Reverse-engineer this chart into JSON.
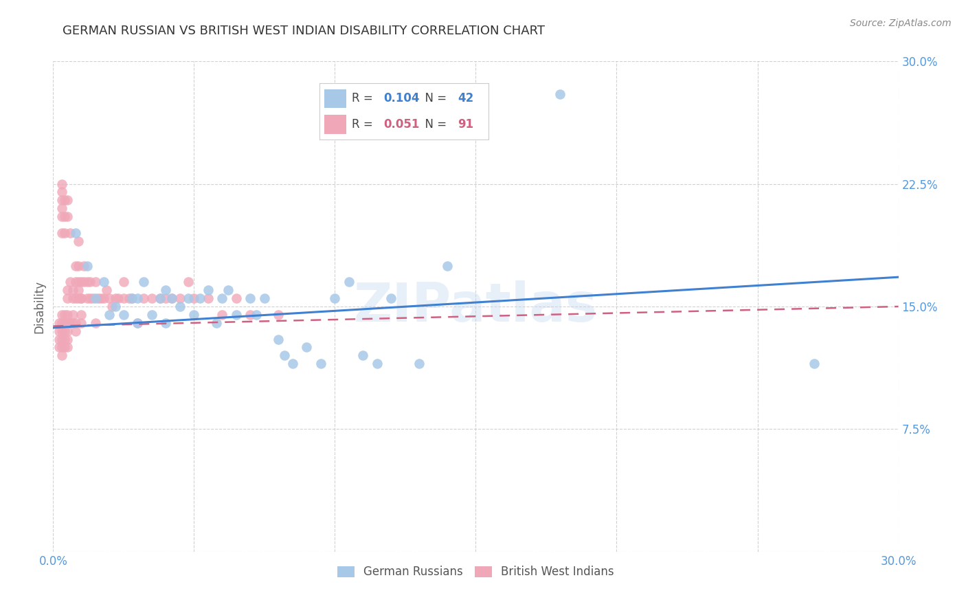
{
  "title": "GERMAN RUSSIAN VS BRITISH WEST INDIAN DISABILITY CORRELATION CHART",
  "source": "Source: ZipAtlas.com",
  "ylabel": "Disability",
  "xlabel": "",
  "xlim": [
    0.0,
    0.3
  ],
  "ylim": [
    0.0,
    0.3
  ],
  "watermark": "ZIPatlas",
  "legend_label1": "German Russians",
  "legend_label2": "British West Indians",
  "blue_color": "#a8c8e8",
  "pink_color": "#f0a8b8",
  "line_blue": "#4080d0",
  "line_pink": "#d06080",
  "background": "#ffffff",
  "R1": 0.104,
  "N1": 42,
  "R2": 0.051,
  "N2": 91,
  "blue_x": [
    0.008,
    0.012,
    0.015,
    0.018,
    0.02,
    0.022,
    0.025,
    0.028,
    0.03,
    0.03,
    0.032,
    0.035,
    0.038,
    0.04,
    0.04,
    0.042,
    0.045,
    0.048,
    0.05,
    0.052,
    0.055,
    0.058,
    0.06,
    0.062,
    0.065,
    0.07,
    0.072,
    0.075,
    0.08,
    0.082,
    0.085,
    0.09,
    0.095,
    0.1,
    0.105,
    0.11,
    0.115,
    0.12,
    0.13,
    0.14,
    0.27,
    0.18
  ],
  "blue_y": [
    0.195,
    0.175,
    0.155,
    0.165,
    0.145,
    0.15,
    0.145,
    0.155,
    0.14,
    0.155,
    0.165,
    0.145,
    0.155,
    0.14,
    0.16,
    0.155,
    0.15,
    0.155,
    0.145,
    0.155,
    0.16,
    0.14,
    0.155,
    0.16,
    0.145,
    0.155,
    0.145,
    0.155,
    0.13,
    0.12,
    0.115,
    0.125,
    0.115,
    0.155,
    0.165,
    0.12,
    0.115,
    0.155,
    0.115,
    0.175,
    0.115,
    0.28
  ],
  "pink_x": [
    0.002,
    0.002,
    0.002,
    0.002,
    0.003,
    0.003,
    0.003,
    0.003,
    0.003,
    0.003,
    0.004,
    0.004,
    0.004,
    0.004,
    0.004,
    0.005,
    0.005,
    0.005,
    0.005,
    0.005,
    0.005,
    0.005,
    0.006,
    0.006,
    0.006,
    0.006,
    0.007,
    0.007,
    0.007,
    0.007,
    0.008,
    0.008,
    0.008,
    0.008,
    0.008,
    0.009,
    0.009,
    0.009,
    0.009,
    0.009,
    0.01,
    0.01,
    0.01,
    0.01,
    0.01,
    0.011,
    0.011,
    0.012,
    0.012,
    0.013,
    0.013,
    0.014,
    0.015,
    0.015,
    0.016,
    0.017,
    0.018,
    0.019,
    0.02,
    0.021,
    0.022,
    0.023,
    0.025,
    0.025,
    0.027,
    0.028,
    0.03,
    0.032,
    0.035,
    0.038,
    0.04,
    0.042,
    0.045,
    0.048,
    0.05,
    0.055,
    0.06,
    0.065,
    0.07,
    0.08,
    0.003,
    0.003,
    0.003,
    0.003,
    0.003,
    0.003,
    0.004,
    0.004,
    0.004,
    0.005,
    0.005
  ],
  "pink_y": [
    0.135,
    0.14,
    0.13,
    0.125,
    0.14,
    0.145,
    0.13,
    0.125,
    0.12,
    0.135,
    0.14,
    0.135,
    0.145,
    0.13,
    0.125,
    0.14,
    0.145,
    0.155,
    0.16,
    0.135,
    0.125,
    0.13,
    0.14,
    0.195,
    0.165,
    0.14,
    0.155,
    0.14,
    0.145,
    0.16,
    0.135,
    0.14,
    0.155,
    0.165,
    0.175,
    0.155,
    0.16,
    0.165,
    0.175,
    0.19,
    0.14,
    0.145,
    0.155,
    0.165,
    0.155,
    0.165,
    0.175,
    0.155,
    0.165,
    0.155,
    0.165,
    0.155,
    0.14,
    0.165,
    0.155,
    0.155,
    0.155,
    0.16,
    0.155,
    0.15,
    0.155,
    0.155,
    0.155,
    0.165,
    0.155,
    0.155,
    0.14,
    0.155,
    0.155,
    0.155,
    0.155,
    0.155,
    0.155,
    0.165,
    0.155,
    0.155,
    0.145,
    0.155,
    0.145,
    0.145,
    0.225,
    0.215,
    0.22,
    0.21,
    0.205,
    0.195,
    0.215,
    0.205,
    0.195,
    0.215,
    0.205
  ],
  "blue_line_x0": 0.0,
  "blue_line_x1": 0.3,
  "blue_line_y0": 0.137,
  "blue_line_y1": 0.168,
  "pink_line_x0": 0.0,
  "pink_line_x1": 0.3,
  "pink_line_y0": 0.138,
  "pink_line_y1": 0.15
}
